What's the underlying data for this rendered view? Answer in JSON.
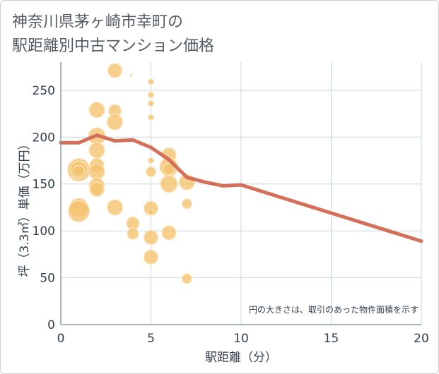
{
  "title_lines": [
    "神奈川県茅ヶ崎市幸町の",
    "駅距離別中古マンション価格"
  ],
  "colors": {
    "bubble_fill": "#f5c26b",
    "bubble_stroke": "#fde7c1",
    "line": "#d4705a",
    "grid": "#c9d6e0",
    "axis": "#8a9aa8",
    "text": "#333f4d"
  },
  "chart_data": {
    "type": "scatter",
    "xlabel": "駅距離（分）",
    "ylabel": "坪（3.3㎡）単価（万円）",
    "xlim": [
      0,
      20
    ],
    "ylim": [
      0,
      280
    ],
    "x_ticks": [
      0,
      5,
      10,
      15,
      20
    ],
    "y_ticks": [
      0,
      50,
      100,
      150,
      200,
      250
    ],
    "note": "円の大きさは、取引のあった物件面積を示す",
    "bubbles": [
      {
        "x": 1,
        "y": 165,
        "r": 16
      },
      {
        "x": 1,
        "y": 165,
        "r": 12
      },
      {
        "x": 1,
        "y": 164,
        "r": 8
      },
      {
        "x": 1,
        "y": 125,
        "r": 13
      },
      {
        "x": 1,
        "y": 121,
        "r": 15
      },
      {
        "x": 2,
        "y": 229,
        "r": 11
      },
      {
        "x": 2,
        "y": 201,
        "r": 12
      },
      {
        "x": 2,
        "y": 186,
        "r": 11
      },
      {
        "x": 2,
        "y": 170,
        "r": 10
      },
      {
        "x": 2,
        "y": 163,
        "r": 11
      },
      {
        "x": 2,
        "y": 148,
        "r": 11
      },
      {
        "x": 2,
        "y": 144,
        "r": 10
      },
      {
        "x": 3,
        "y": 271,
        "r": 10
      },
      {
        "x": 3,
        "y": 228,
        "r": 9
      },
      {
        "x": 3,
        "y": 216,
        "r": 11
      },
      {
        "x": 3,
        "y": 125,
        "r": 11
      },
      {
        "x": 3.9,
        "y": 266,
        "r": 1.5
      },
      {
        "x": 4,
        "y": 108,
        "r": 9
      },
      {
        "x": 4,
        "y": 97,
        "r": 8
      },
      {
        "x": 5,
        "y": 259,
        "r": 4
      },
      {
        "x": 5,
        "y": 245,
        "r": 4
      },
      {
        "x": 5,
        "y": 236,
        "r": 4
      },
      {
        "x": 5,
        "y": 221,
        "r": 4
      },
      {
        "x": 5,
        "y": 175,
        "r": 4
      },
      {
        "x": 5,
        "y": 163,
        "r": 7
      },
      {
        "x": 5,
        "y": 124,
        "r": 10
      },
      {
        "x": 5,
        "y": 120,
        "r": 4
      },
      {
        "x": 5,
        "y": 93,
        "r": 10
      },
      {
        "x": 5,
        "y": 72,
        "r": 10
      },
      {
        "x": 6,
        "y": 181,
        "r": 10
      },
      {
        "x": 6,
        "y": 168,
        "r": 13
      },
      {
        "x": 6,
        "y": 166,
        "r": 8
      },
      {
        "x": 6,
        "y": 150,
        "r": 12
      },
      {
        "x": 6,
        "y": 98,
        "r": 10
      },
      {
        "x": 7,
        "y": 152,
        "r": 11
      },
      {
        "x": 7,
        "y": 129,
        "r": 7
      },
      {
        "x": 7,
        "y": 49,
        "r": 7
      }
    ],
    "series": [
      {
        "x": [
          0,
          1,
          2,
          3,
          4,
          5,
          6,
          7,
          8,
          9,
          10,
          11,
          12,
          13,
          14,
          15,
          16,
          17,
          18,
          19,
          20
        ],
        "values": [
          194,
          194,
          202,
          196,
          197,
          189,
          176,
          157,
          152,
          148,
          149,
          143,
          137,
          131,
          125,
          119,
          113,
          107,
          101,
          95,
          89
        ]
      }
    ]
  }
}
